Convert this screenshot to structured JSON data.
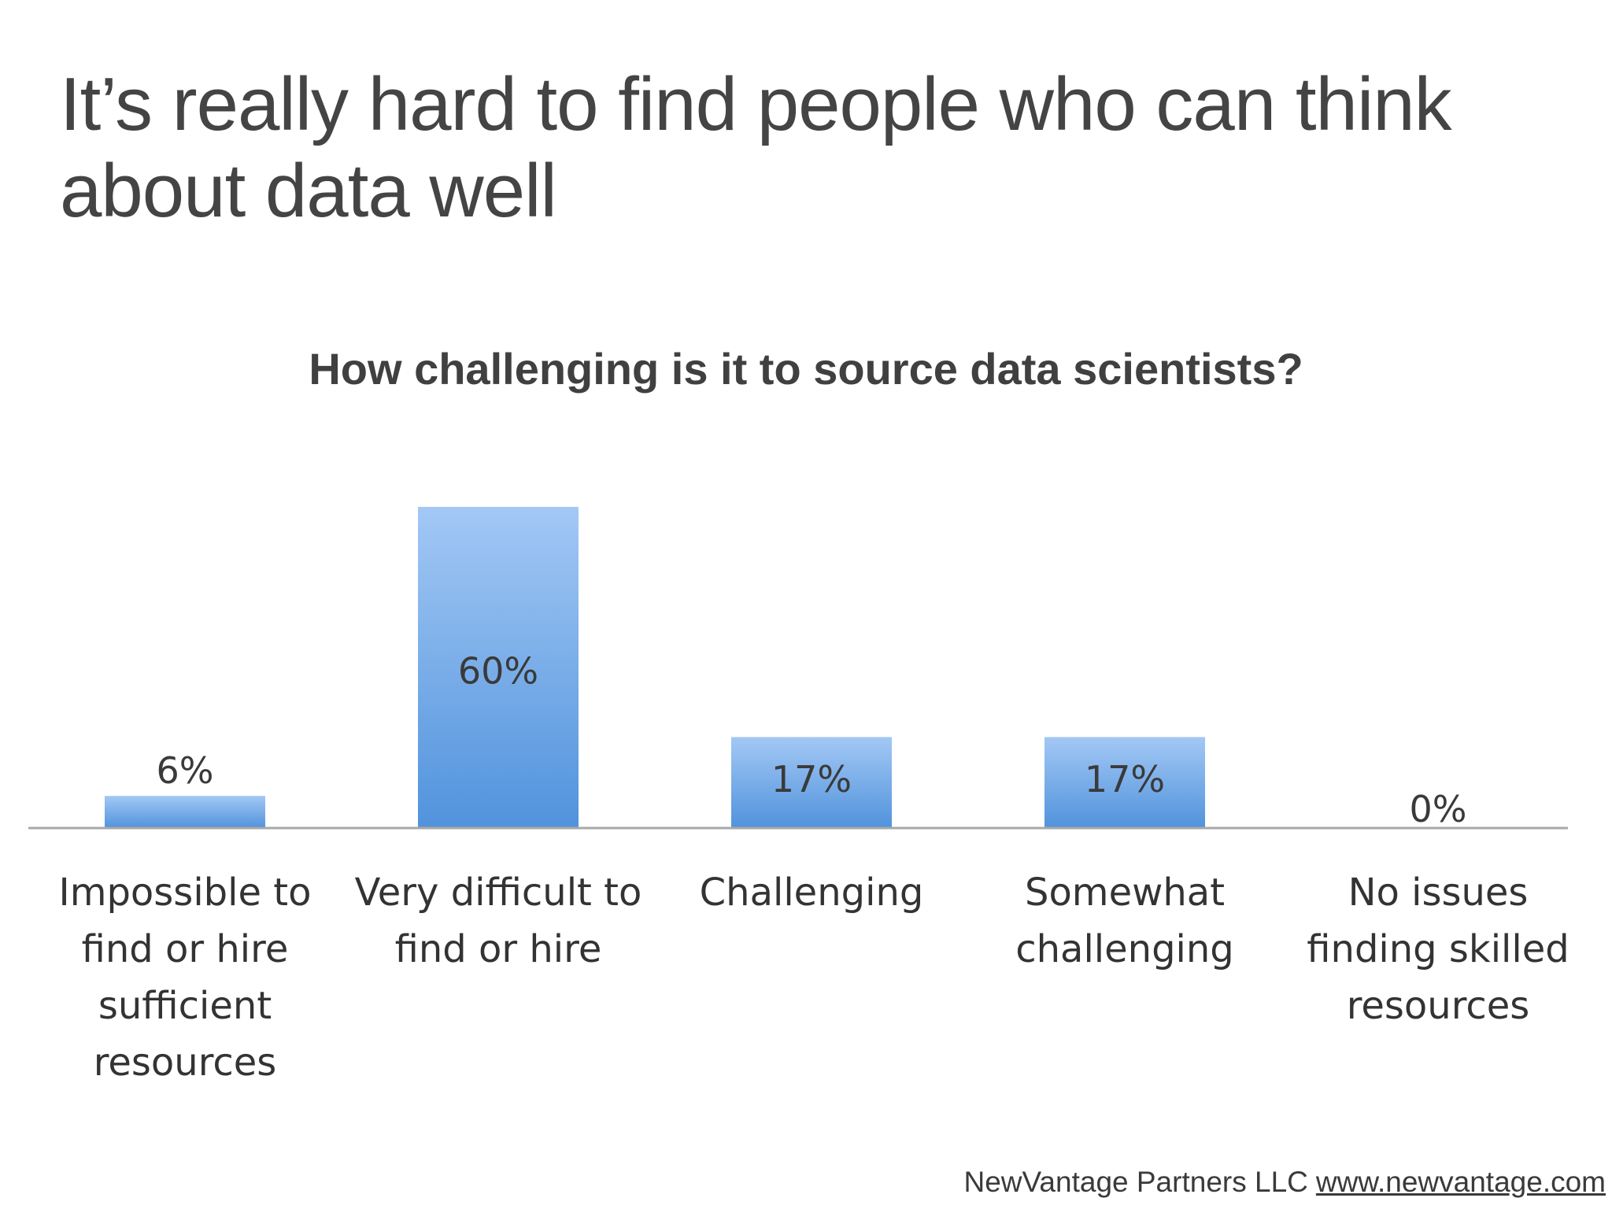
{
  "slide": {
    "title_lines": [
      "It’s really hard to find people who can think",
      "about data well"
    ]
  },
  "chart_data": {
    "type": "bar",
    "title": "How challenging is it to source data scientists?",
    "categories": [
      "Impossible to find or hire sufficient resources",
      "Very difficult to find or hire",
      "Challenging",
      "Somewhat challenging",
      "No issues finding skilled resources"
    ],
    "category_label_lines": [
      [
        "Impossible to",
        "find or hire",
        "sufficient",
        "resources"
      ],
      [
        "Very difficult to",
        "find or hire"
      ],
      [
        "Challenging"
      ],
      [
        "Somewhat",
        "challenging"
      ],
      [
        "No issues",
        "finding skilled",
        "resources"
      ]
    ],
    "values": [
      6,
      60,
      17,
      17,
      0
    ],
    "data_labels": [
      "6%",
      "60%",
      "17%",
      "17%",
      "0%"
    ],
    "xlabel": "",
    "ylabel": "",
    "ylim": [
      0,
      60
    ],
    "grid": false,
    "legend": "none",
    "colors": {
      "bar_top": "#a3c8f5",
      "bar_bottom": "#5193dc",
      "axis": "#a8a8a8"
    }
  },
  "footer": {
    "company": "NewVantage Partners LLC",
    "link": "www.newvantage.com"
  }
}
